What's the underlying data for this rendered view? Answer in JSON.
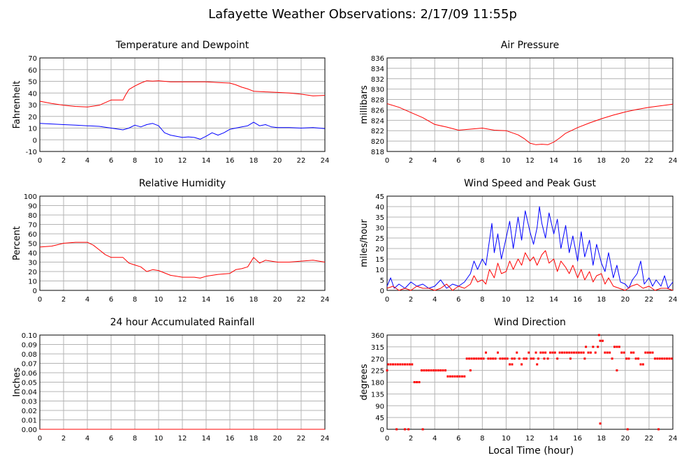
{
  "title": "Lafayette Weather Observations: 2/17/09 11:55p",
  "xlabel": "Local Time (hour)",
  "colors": {
    "red": "#ff0000",
    "blue": "#0000ff",
    "grid": "#b4b4b4"
  },
  "chart_data": [
    {
      "id": "temp",
      "type": "line",
      "title": "Temperature and Dewpoint",
      "ylabel": "Fahrenheit",
      "xlim": [
        0,
        24
      ],
      "ylim": [
        -10,
        70
      ],
      "xticks": [
        0,
        2,
        4,
        6,
        8,
        10,
        12,
        14,
        16,
        18,
        20,
        22,
        24
      ],
      "yticks": [
        -10,
        0,
        10,
        20,
        30,
        40,
        50,
        60,
        70
      ],
      "yprec": 0,
      "grid": true,
      "series": [
        {
          "color": "#ff0000",
          "style": "line",
          "x": [
            0,
            1,
            2,
            3,
            4,
            5,
            6,
            6.5,
            7,
            7.2,
            7.5,
            8,
            8.5,
            9,
            9.5,
            10,
            11,
            12,
            13,
            14,
            15,
            16,
            16.5,
            17,
            17.5,
            18,
            19,
            20,
            21,
            22,
            23,
            24
          ],
          "y": [
            33,
            31,
            29.5,
            28.5,
            28,
            29.5,
            34,
            34,
            34,
            38,
            43,
            46,
            48.5,
            50.5,
            50.2,
            50.5,
            49.5,
            49.5,
            49.5,
            49.5,
            49,
            48.5,
            47,
            45,
            43.5,
            41.5,
            41,
            40.5,
            40,
            39,
            37.5,
            38
          ]
        },
        {
          "color": "#0000ff",
          "style": "line",
          "x": [
            0,
            1,
            2,
            3,
            4,
            5,
            6,
            7,
            7.5,
            8,
            8.5,
            9,
            9.5,
            10,
            10.5,
            11,
            11.5,
            12,
            12.5,
            13,
            13.5,
            14,
            14.5,
            15,
            15.5,
            16,
            16.5,
            17,
            17.5,
            18,
            18.5,
            19,
            19.5,
            20,
            21,
            22,
            23,
            24
          ],
          "y": [
            14,
            13.5,
            13,
            12.5,
            12,
            11.5,
            10,
            8.5,
            10,
            12.5,
            11,
            13,
            14,
            12,
            6,
            4,
            3,
            2,
            2.5,
            2,
            0.5,
            3,
            6,
            4,
            6,
            9,
            10,
            11,
            12,
            15,
            12,
            13,
            11,
            10.5,
            10.5,
            10,
            10.5,
            9.5
          ]
        }
      ]
    },
    {
      "id": "pressure",
      "type": "line",
      "title": "Air Pressure",
      "ylabel": "millibars",
      "xlim": [
        0,
        24
      ],
      "ylim": [
        818,
        836
      ],
      "xticks": [
        0,
        2,
        4,
        6,
        8,
        10,
        12,
        14,
        16,
        18,
        20,
        22,
        24
      ],
      "yticks": [
        818,
        820,
        822,
        824,
        826,
        828,
        830,
        832,
        834,
        836
      ],
      "yprec": 0,
      "grid": true,
      "series": [
        {
          "color": "#ff0000",
          "style": "line",
          "x": [
            0,
            1,
            2,
            3,
            4,
            5,
            6,
            7,
            8,
            9,
            10,
            11,
            11.5,
            12,
            12.5,
            13,
            13.5,
            14,
            14.5,
            15,
            16,
            17,
            18,
            19,
            20,
            21,
            22,
            23,
            24
          ],
          "y": [
            827.2,
            826.5,
            825.5,
            824.5,
            823.2,
            822.7,
            822.1,
            822.3,
            822.5,
            822.1,
            822,
            821.2,
            820.5,
            819.6,
            819.3,
            819.4,
            819.3,
            819.8,
            820.6,
            821.5,
            822.6,
            823.5,
            824.3,
            825,
            825.6,
            826.1,
            826.5,
            826.8,
            827.1
          ]
        }
      ]
    },
    {
      "id": "humidity",
      "type": "line",
      "title": "Relative Humidity",
      "ylabel": "Percent",
      "xlim": [
        0,
        24
      ],
      "ylim": [
        0,
        100
      ],
      "xticks": [
        0,
        2,
        4,
        6,
        8,
        10,
        12,
        14,
        16,
        18,
        20,
        22,
        24
      ],
      "yticks": [
        0,
        10,
        20,
        30,
        40,
        50,
        60,
        70,
        80,
        90,
        100
      ],
      "yprec": 0,
      "grid": true,
      "series": [
        {
          "color": "#ff0000",
          "style": "line",
          "x": [
            0,
            1,
            2,
            3,
            4,
            4.5,
            5,
            5.5,
            6,
            7,
            7.5,
            8,
            8.5,
            9,
            9.5,
            10,
            11,
            12,
            13,
            13.5,
            14,
            15,
            16,
            16.5,
            17,
            17.5,
            18,
            18.5,
            19,
            20,
            21,
            22,
            23,
            24
          ],
          "y": [
            46,
            47,
            50,
            51,
            51,
            48,
            43,
            38,
            35,
            35,
            29,
            27,
            25,
            20,
            22,
            21,
            16,
            14,
            14,
            13,
            15,
            17,
            18,
            22,
            23,
            25,
            35,
            29,
            32,
            30,
            30,
            31,
            32,
            30
          ]
        }
      ]
    },
    {
      "id": "wind",
      "type": "line",
      "title": "Wind Speed and Peak Gust",
      "ylabel": "miles/hour",
      "xlim": [
        0,
        24
      ],
      "ylim": [
        0,
        45
      ],
      "xticks": [
        0,
        2,
        4,
        6,
        8,
        10,
        12,
        14,
        16,
        18,
        20,
        22,
        24
      ],
      "yticks": [
        0,
        5,
        10,
        15,
        20,
        25,
        30,
        35,
        40,
        45
      ],
      "yprec": 0,
      "grid": true,
      "series": [
        {
          "color": "#0000ff",
          "style": "line",
          "x": [
            0,
            0.3,
            0.6,
            1,
            1.5,
            2,
            2.5,
            3,
            3.5,
            4,
            4.5,
            5,
            5.5,
            6,
            6.5,
            7,
            7.3,
            7.6,
            8,
            8.3,
            8.6,
            8.8,
            9,
            9.3,
            9.6,
            10,
            10.3,
            10.6,
            11,
            11.3,
            11.6,
            12,
            12.3,
            12.6,
            12.8,
            13,
            13.3,
            13.6,
            14,
            14.3,
            14.6,
            15,
            15.3,
            15.6,
            16,
            16.3,
            16.6,
            17,
            17.3,
            17.6,
            18,
            18.3,
            18.6,
            19,
            19.3,
            19.6,
            20,
            20.3,
            20.6,
            21,
            21.3,
            21.6,
            22,
            22.3,
            22.6,
            23,
            23.3,
            23.6,
            24
          ],
          "y": [
            2,
            6,
            1,
            3,
            1,
            4,
            2,
            3,
            1,
            2,
            5,
            1,
            3,
            2,
            4,
            8,
            14,
            10,
            15,
            12,
            24,
            32,
            18,
            27,
            15,
            25,
            33,
            20,
            35,
            24,
            38,
            28,
            22,
            30,
            40,
            32,
            25,
            37,
            27,
            34,
            20,
            31,
            18,
            26,
            14,
            28,
            16,
            24,
            12,
            22,
            13,
            9,
            18,
            6,
            12,
            4,
            3,
            1,
            5,
            8,
            14,
            3,
            6,
            2,
            5,
            2,
            7,
            1,
            4
          ]
        },
        {
          "color": "#ff0000",
          "style": "line",
          "x": [
            0,
            0.5,
            1,
            1.5,
            2,
            2.5,
            3,
            3.5,
            4,
            4.5,
            5,
            5.5,
            6,
            6.5,
            7,
            7.3,
            7.6,
            8,
            8.3,
            8.6,
            9,
            9.3,
            9.6,
            10,
            10.3,
            10.6,
            11,
            11.3,
            11.6,
            12,
            12.3,
            12.6,
            13,
            13.3,
            13.6,
            14,
            14.3,
            14.6,
            15,
            15.3,
            15.6,
            16,
            16.3,
            16.6,
            17,
            17.3,
            17.6,
            18,
            18.3,
            18.6,
            19,
            19.5,
            20,
            20.5,
            21,
            21.5,
            22,
            22.5,
            23,
            23.5,
            24
          ],
          "y": [
            1,
            2,
            0,
            1,
            0,
            2,
            1,
            1,
            0,
            1,
            3,
            0,
            2,
            1,
            3,
            7,
            4,
            5,
            3,
            10,
            6,
            13,
            8,
            9,
            14,
            10,
            15,
            12,
            18,
            14,
            16,
            12,
            17,
            19,
            13,
            15,
            9,
            14,
            11,
            8,
            12,
            6,
            10,
            5,
            9,
            4,
            7,
            8,
            3,
            6,
            2,
            1,
            0,
            2,
            3,
            1,
            2,
            0,
            1,
            1,
            0
          ]
        }
      ]
    },
    {
      "id": "rain",
      "type": "line",
      "title": "24 hour Accumulated Rainfall",
      "ylabel": "Inches",
      "xlim": [
        0,
        24
      ],
      "ylim": [
        0,
        0.1
      ],
      "xticks": [
        0,
        2,
        4,
        6,
        8,
        10,
        12,
        14,
        16,
        18,
        20,
        22,
        24
      ],
      "yticks": [
        0,
        0.01,
        0.02,
        0.03,
        0.04,
        0.05,
        0.06,
        0.07,
        0.08,
        0.09,
        0.1
      ],
      "yprec": 2,
      "grid": true,
      "series": [
        {
          "color": "#ff0000",
          "style": "line",
          "x": [
            0,
            24
          ],
          "y": [
            0,
            0
          ]
        }
      ]
    },
    {
      "id": "direction",
      "type": "scatter",
      "title": "Wind Direction",
      "ylabel": "degrees",
      "xlim": [
        0,
        24
      ],
      "ylim": [
        0,
        360
      ],
      "xticks": [
        0,
        2,
        4,
        6,
        8,
        10,
        12,
        14,
        16,
        18,
        20,
        22,
        24
      ],
      "yticks": [
        0,
        45,
        90,
        135,
        180,
        225,
        270,
        315,
        360
      ],
      "yprec": 0,
      "grid": true,
      "series": [
        {
          "color": "#ff0000",
          "style": "points",
          "x": [
            0,
            0.1,
            0.3,
            0.5,
            0.7,
            0.9,
            1.1,
            1.3,
            1.5,
            1.7,
            1.9,
            2.1,
            0.8,
            1.5,
            1.8,
            2.3,
            2.5,
            2.7,
            2.9,
            3.1,
            3.3,
            3.5,
            3.7,
            3.9,
            4.1,
            4.3,
            4.5,
            4.7,
            4.9,
            5.1,
            5.3,
            5.5,
            5.7,
            5.9,
            6.1,
            6.3,
            6.5,
            3.0,
            6.7,
            6.9,
            7.1,
            7.3,
            7.5,
            7.7,
            7.9,
            8.1,
            8.3,
            8.5,
            8.7,
            8.9,
            9.1,
            9.3,
            9.5,
            9.7,
            9.9,
            10.1,
            10.3,
            10.5,
            10.7,
            10.9,
            11.1,
            11.3,
            11.5,
            11.7,
            11.9,
            12.1,
            12.3,
            12.5,
            12.7,
            12.9,
            13.1,
            13.3,
            13.5,
            13.7,
            13.9,
            14.1,
            14.3,
            14.5,
            14.7,
            14.9,
            15.1,
            15.3,
            15.5,
            15.7,
            15.9,
            16.1,
            16.3,
            16.5,
            16.7,
            16.9,
            17.1,
            17.3,
            17.5,
            17.7,
            17.9,
            18.1,
            18.3,
            18.5,
            18.7,
            18.9,
            19.1,
            19.3,
            19.5,
            19.7,
            19.9,
            20.1,
            20.3,
            20.5,
            20.7,
            20.9,
            21.1,
            21.3,
            21.5,
            21.7,
            21.9,
            22.1,
            22.3,
            22.5,
            22.7,
            22.9,
            23.1,
            23.3,
            23.5,
            23.7,
            23.9,
            7.0,
            10.5,
            11.3,
            12.6,
            13.2,
            15.4,
            16.6,
            17.8,
            17.9,
            19.3,
            20.2,
            22.8
          ],
          "y": [
            225,
            248,
            248,
            248,
            248,
            248,
            248,
            248,
            248,
            248,
            248,
            248,
            0,
            0,
            0,
            180,
            180,
            180,
            225,
            225,
            225,
            225,
            225,
            225,
            225,
            225,
            225,
            225,
            225,
            202,
            202,
            202,
            202,
            202,
            202,
            202,
            202,
            0,
            270,
            270,
            270,
            270,
            270,
            270,
            270,
            270,
            293,
            270,
            270,
            270,
            270,
            293,
            270,
            270,
            270,
            270,
            248,
            270,
            270,
            293,
            270,
            248,
            270,
            270,
            293,
            270,
            270,
            293,
            270,
            293,
            293,
            293,
            270,
            293,
            293,
            293,
            270,
            293,
            293,
            293,
            293,
            293,
            293,
            293,
            293,
            293,
            293,
            293,
            315,
            293,
            293,
            315,
            293,
            315,
            338,
            338,
            293,
            293,
            293,
            270,
            315,
            315,
            315,
            293,
            293,
            270,
            270,
            293,
            293,
            270,
            270,
            248,
            248,
            293,
            293,
            293,
            293,
            270,
            270,
            270,
            270,
            270,
            270,
            270,
            270,
            225,
            248,
            248,
            248,
            270,
            270,
            270,
            360,
            22,
            225,
            0,
            0
          ]
        }
      ]
    }
  ]
}
